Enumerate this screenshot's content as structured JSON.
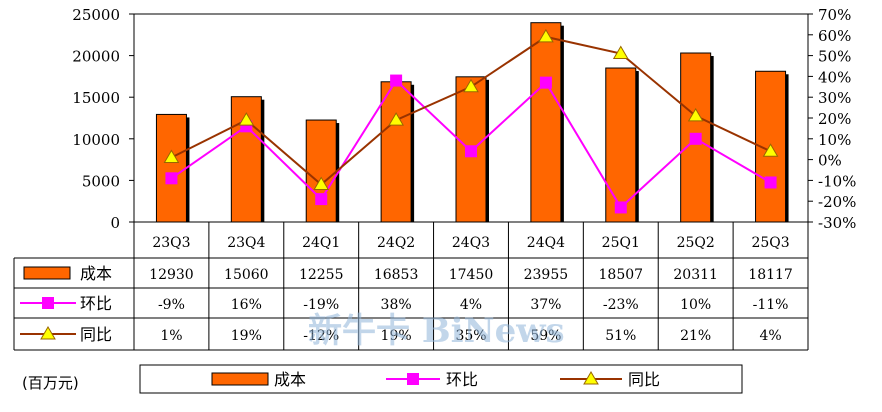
{
  "chart_data": {
    "type": "bar",
    "categories": [
      "23Q3",
      "23Q4",
      "24Q1",
      "24Q2",
      "24Q3",
      "24Q4",
      "25Q1",
      "25Q2",
      "25Q3"
    ],
    "left_axis": {
      "range": [
        0,
        25000
      ],
      "ticks": [
        "25000",
        "20000",
        "15000",
        "10000",
        "5000",
        "0"
      ]
    },
    "right_axis": {
      "range": [
        -30,
        70
      ],
      "ticks": [
        "70%",
        "60%",
        "50%",
        "40%",
        "30%",
        "20%",
        "10%",
        "0%",
        "-10%",
        "-20%",
        "-30%"
      ]
    },
    "series": [
      {
        "name": "成本",
        "kind": "bar",
        "axis": "left",
        "color": "#ff6600",
        "values": [
          12930,
          15060,
          12255,
          16853,
          17450,
          23955,
          18507,
          20311,
          18117
        ],
        "labels": [
          "12930",
          "15060",
          "12255",
          "16853",
          "17450",
          "23955",
          "18507",
          "20311",
          "18117"
        ]
      },
      {
        "name": "环比",
        "kind": "line",
        "axis": "right",
        "color": "#ff00ff",
        "marker": "square",
        "values": [
          -9,
          16,
          -19,
          38,
          4,
          37,
          -23,
          10,
          -11
        ],
        "labels": [
          "-9%",
          "16%",
          "-19%",
          "38%",
          "4%",
          "37%",
          "-23%",
          "10%",
          "-11%"
        ]
      },
      {
        "name": "同比",
        "kind": "line",
        "axis": "right",
        "color": "#993300",
        "marker": "triangle",
        "values": [
          1,
          19,
          -12,
          19,
          35,
          59,
          51,
          21,
          4
        ],
        "labels": [
          "1%",
          "19%",
          "-12%",
          "19%",
          "35%",
          "59%",
          "51%",
          "21%",
          "4%"
        ]
      }
    ],
    "legend_position": "bottom",
    "unit_note": "(百万元)",
    "watermark": "新牛卡 BiNews",
    "grid": false
  }
}
